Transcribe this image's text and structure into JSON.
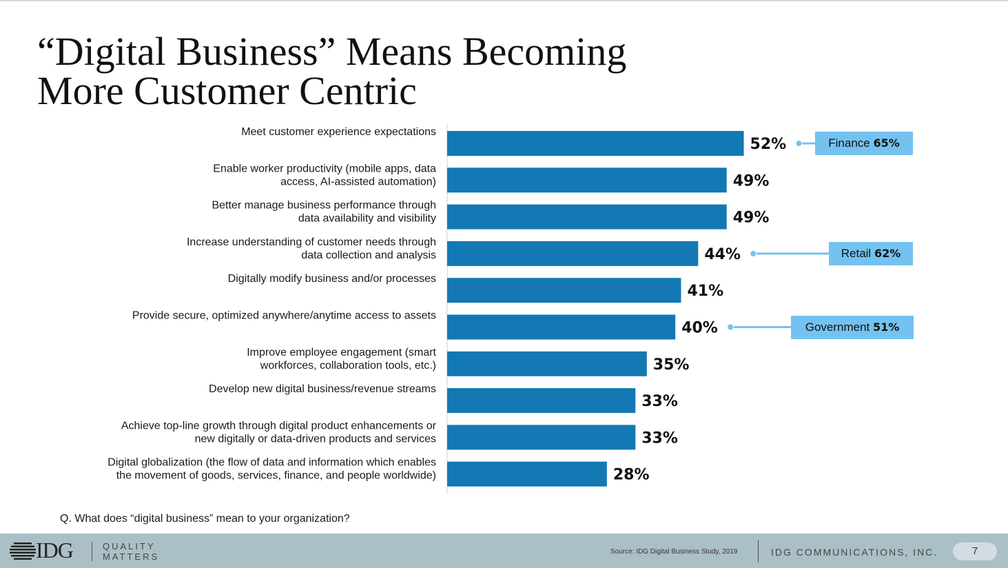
{
  "title": {
    "line1": "“Digital Business” Means Becoming",
    "line2": "More Customer Centric"
  },
  "chart_data": {
    "type": "bar",
    "orientation": "horizontal",
    "categories": [
      [
        "Meet customer experience expectations"
      ],
      [
        "Enable worker productivity (mobile apps, data",
        "access, AI-assisted automation)"
      ],
      [
        "Better manage business performance through",
        "data availability and visibility"
      ],
      [
        "Increase understanding of customer needs through",
        "data collection and analysis"
      ],
      [
        "Digitally modify business and/or processes"
      ],
      [
        "Provide secure, optimized anywhere/anytime access to assets"
      ],
      [
        "Improve employee engagement (smart",
        "workforces, collaboration tools, etc.)"
      ],
      [
        "Develop new digital business/revenue streams"
      ],
      [
        "Achieve top-line growth through digital product enhancements or",
        "new digitally or data-driven products and services"
      ],
      [
        "Digital globalization (the flow of data and information which enables",
        "the movement of goods, services, finance, and people worldwide)"
      ]
    ],
    "values": [
      52,
      49,
      49,
      44,
      41,
      40,
      35,
      33,
      33,
      28
    ],
    "value_labels": [
      "52%",
      "49%",
      "49%",
      "44%",
      "41%",
      "40%",
      "35%",
      "33%",
      "33%",
      "28%"
    ],
    "bar_color": "#1478b4",
    "callout_color": "#74c2ef",
    "callouts": [
      {
        "bar_index": 0,
        "name": "Finance",
        "value": "65%"
      },
      {
        "bar_index": 3,
        "name": "Retail",
        "value": "62%"
      },
      {
        "bar_index": 5,
        "name": "Government",
        "value": "51%"
      }
    ]
  },
  "question": "Q. What does “digital business” mean to your organization?",
  "footer": {
    "logo": "IDG",
    "tagline_line1": "QUALITY",
    "tagline_line2": "MATTERS",
    "source": "Source: IDG Digital Business Study, 2019",
    "company": "IDG COMMUNICATIONS, INC.",
    "page_number": "7"
  }
}
